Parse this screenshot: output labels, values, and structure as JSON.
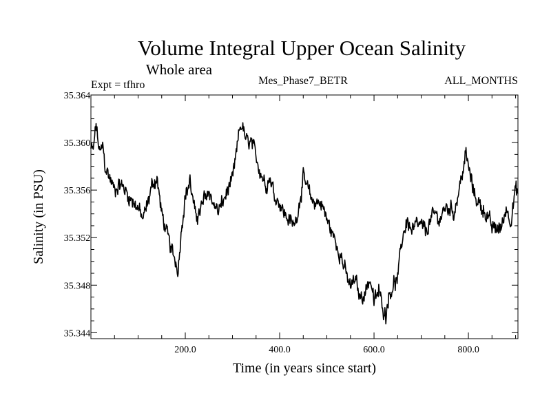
{
  "chart_data": {
    "type": "line",
    "title": "Volume Integral Upper Ocean Salinity",
    "subtitle": "Whole area",
    "experiment_label": "Expt = tfhro",
    "run_label": "Mes_Phase7_BETR",
    "months_label": "ALL_MONTHS",
    "xlabel": "Time (in years since start)",
    "ylabel": "Salinity (in PSU)",
    "xlim": [
      0,
      905
    ],
    "ylim": [
      35.3435,
      35.364
    ],
    "xticks": [
      200,
      400,
      600,
      800
    ],
    "xtick_labels": [
      "200.0",
      "400.0",
      "600.0",
      "800.0"
    ],
    "yticks": [
      35.344,
      35.348,
      35.352,
      35.356,
      35.36,
      35.364
    ],
    "ytick_labels": [
      "35.344",
      "35.348",
      "35.352",
      "35.356",
      "35.360",
      "35.364"
    ],
    "grid": false,
    "series": [
      {
        "name": "Salinity",
        "x": [
          0,
          5,
          11,
          15,
          20,
          25,
          30,
          40,
          50,
          60,
          70,
          80,
          90,
          100,
          110,
          120,
          130,
          140,
          150,
          160,
          170,
          180,
          185,
          190,
          195,
          200,
          210,
          220,
          230,
          240,
          250,
          260,
          270,
          280,
          290,
          300,
          310,
          315,
          320,
          330,
          340,
          350,
          360,
          370,
          380,
          390,
          400,
          410,
          420,
          430,
          440,
          450,
          460,
          470,
          480,
          490,
          500,
          510,
          520,
          530,
          540,
          550,
          560,
          570,
          580,
          590,
          595,
          600,
          610,
          620,
          625,
          630,
          640,
          650,
          660,
          670,
          680,
          690,
          700,
          710,
          720,
          730,
          740,
          750,
          760,
          770,
          780,
          790,
          795,
          800,
          810,
          820,
          830,
          840,
          850,
          860,
          870,
          880,
          890,
          900,
          905
        ],
        "y": [
          35.3595,
          35.3593,
          35.3616,
          35.36,
          35.359,
          35.3598,
          35.358,
          35.357,
          35.356,
          35.3565,
          35.3562,
          35.3555,
          35.355,
          35.3545,
          35.3535,
          35.3548,
          35.3565,
          35.357,
          35.354,
          35.3525,
          35.351,
          35.35,
          35.3493,
          35.352,
          35.354,
          35.3555,
          35.3568,
          35.354,
          35.354,
          35.3552,
          35.356,
          35.3548,
          35.3542,
          35.355,
          35.356,
          35.3568,
          35.3595,
          35.3612,
          35.3615,
          35.36,
          35.36,
          35.3588,
          35.3575,
          35.3565,
          35.357,
          35.3555,
          35.355,
          35.354,
          35.3535,
          35.353,
          35.3545,
          35.357,
          35.356,
          35.355,
          35.355,
          35.3548,
          35.3535,
          35.3525,
          35.3515,
          35.3505,
          35.349,
          35.3478,
          35.3485,
          35.347,
          35.3473,
          35.3485,
          35.348,
          35.3465,
          35.3475,
          35.346,
          35.3455,
          35.347,
          35.348,
          35.3485,
          35.352,
          35.3535,
          35.3525,
          35.353,
          35.353,
          35.3525,
          35.3535,
          35.354,
          35.3535,
          35.3545,
          35.3545,
          35.3542,
          35.356,
          35.358,
          35.359,
          35.358,
          35.356,
          35.355,
          35.3545,
          35.3538,
          35.3528,
          35.3528,
          35.3528,
          35.3545,
          35.3535,
          35.356,
          35.3558
        ]
      }
    ]
  }
}
